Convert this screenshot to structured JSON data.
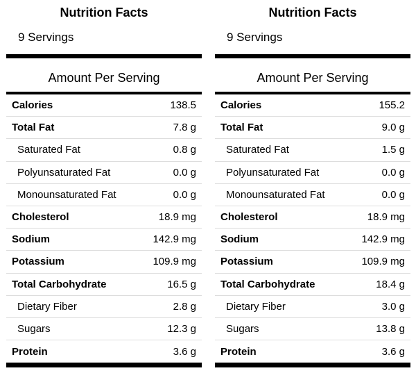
{
  "panels": [
    {
      "title": "Nutrition Facts",
      "servings": "9 Servings",
      "amount_per_serving": "Amount Per Serving",
      "rows": [
        {
          "label": "Calories",
          "value": "138.5",
          "level": "main"
        },
        {
          "label": "Total Fat",
          "value": "7.8 g",
          "level": "main"
        },
        {
          "label": "Saturated Fat",
          "value": "0.8 g",
          "level": "sub"
        },
        {
          "label": "Polyunsaturated Fat",
          "value": "0.0 g",
          "level": "sub"
        },
        {
          "label": "Monounsaturated Fat",
          "value": "0.0 g",
          "level": "sub"
        },
        {
          "label": "Cholesterol",
          "value": "18.9 mg",
          "level": "main"
        },
        {
          "label": "Sodium",
          "value": "142.9 mg",
          "level": "main"
        },
        {
          "label": "Potassium",
          "value": "109.9 mg",
          "level": "main"
        },
        {
          "label": "Total Carbohydrate",
          "value": "16.5 g",
          "level": "main"
        },
        {
          "label": "Dietary Fiber",
          "value": "2.8 g",
          "level": "sub"
        },
        {
          "label": "Sugars",
          "value": "12.3 g",
          "level": "sub"
        },
        {
          "label": "Protein",
          "value": "3.6 g",
          "level": "main"
        }
      ]
    },
    {
      "title": "Nutrition Facts",
      "servings": "9 Servings",
      "amount_per_serving": "Amount Per Serving",
      "rows": [
        {
          "label": "Calories",
          "value": "155.2",
          "level": "main"
        },
        {
          "label": "Total Fat",
          "value": "9.0 g",
          "level": "main"
        },
        {
          "label": "Saturated Fat",
          "value": "1.5 g",
          "level": "sub"
        },
        {
          "label": "Polyunsaturated Fat",
          "value": "0.0 g",
          "level": "sub"
        },
        {
          "label": "Monounsaturated Fat",
          "value": "0.0 g",
          "level": "sub"
        },
        {
          "label": "Cholesterol",
          "value": "18.9 mg",
          "level": "main"
        },
        {
          "label": "Sodium",
          "value": "142.9 mg",
          "level": "main"
        },
        {
          "label": "Potassium",
          "value": "109.9 mg",
          "level": "main"
        },
        {
          "label": "Total Carbohydrate",
          "value": "18.4 g",
          "level": "main"
        },
        {
          "label": "Dietary Fiber",
          "value": "3.0 g",
          "level": "sub"
        },
        {
          "label": "Sugars",
          "value": "13.8 g",
          "level": "sub"
        },
        {
          "label": "Protein",
          "value": "3.6 g",
          "level": "main"
        }
      ]
    }
  ]
}
